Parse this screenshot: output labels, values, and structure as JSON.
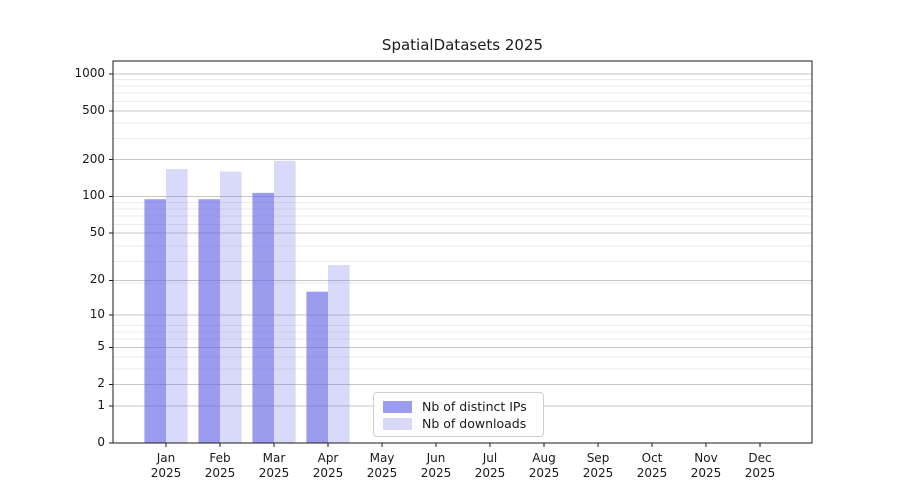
{
  "window": {
    "background": "#ffffff"
  },
  "chart_data": {
    "type": "bar",
    "title": "SpatialDatasets 2025",
    "categories": [
      "Jan",
      "Feb",
      "Mar",
      "Apr",
      "May",
      "Jun",
      "Jul",
      "Aug",
      "Sep",
      "Oct",
      "Nov",
      "Dec"
    ],
    "year_suffix": "2025",
    "series": [
      {
        "name": "Nb of distinct IPs",
        "color": "#6464e6",
        "fill_opacity": 0.64,
        "values": [
          95,
          95,
          107,
          16,
          0,
          0,
          0,
          0,
          0,
          0,
          0,
          0
        ]
      },
      {
        "name": "Nb of downloads",
        "color": "#6464e6",
        "fill_opacity": 0.245,
        "values": [
          168,
          160,
          196,
          27,
          0,
          0,
          0,
          0,
          0,
          0,
          0,
          0
        ]
      }
    ],
    "yticks": [
      0,
      1,
      2,
      5,
      10,
      20,
      50,
      100,
      200,
      500,
      1000
    ],
    "ylim": [
      0,
      1280
    ],
    "scale": "log10(1+v)",
    "grid": {
      "show": true,
      "major_color": "#c6c6c6",
      "minor_color": "#ebebeb"
    },
    "axis_color": "#1a1a1a",
    "text_color": "#1a1a1a",
    "legend": {
      "position": "lower center",
      "entries": [
        "Nb of distinct IPs",
        "Nb of downloads"
      ]
    }
  }
}
